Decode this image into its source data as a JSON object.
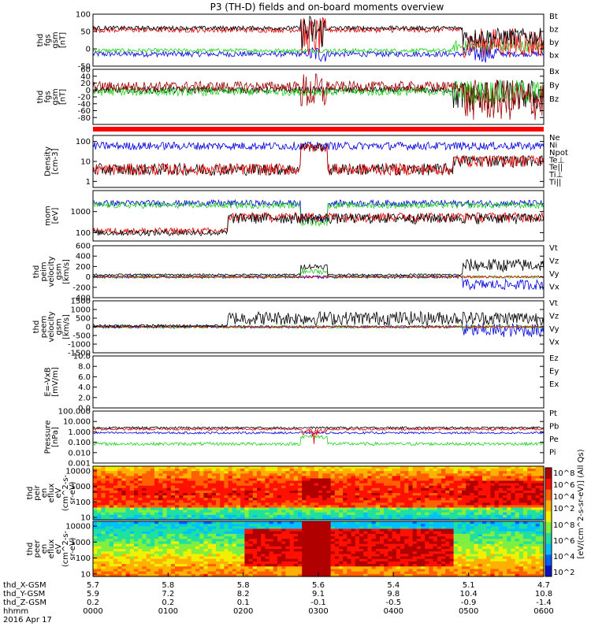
{
  "title": "P3 (TH-D) fields and on-board moments overview",
  "colors": {
    "black": "#000000",
    "red": "#e00000",
    "green": "#20d020",
    "blue": "#0000dd",
    "darkred": "#a00000"
  },
  "chart_data": [
    {
      "type": "line",
      "id": "p1",
      "ylabel": [
        "thd",
        "fgs",
        "gsm",
        "[nT]"
      ],
      "ylim": [
        -50,
        100
      ],
      "ticks": [
        "100",
        "50",
        "0",
        "-50"
      ],
      "tickvals": [
        100,
        50,
        0,
        -50
      ],
      "legend": [
        {
          "text": "Bt",
          "color": "black"
        },
        {
          "text": "bz",
          "color": "red"
        },
        {
          "text": "by",
          "color": "green"
        },
        {
          "text": "bx",
          "color": "blue"
        }
      ],
      "series": [
        {
          "name": "bx",
          "color": "blue",
          "base": -15,
          "noise": 8,
          "bursts": [
            [
              0.48,
              0.52,
              -40,
              10
            ],
            [
              0.82,
              0.9,
              -40,
              15
            ]
          ]
        },
        {
          "name": "by",
          "color": "green",
          "base": -5,
          "noise": 6,
          "bursts": [
            [
              0.8,
              1.0,
              -10,
              25
            ]
          ]
        },
        {
          "name": "bz",
          "color": "red",
          "base": 55,
          "noise": 8,
          "bursts": [
            [
              0.46,
              0.52,
              -20,
              90
            ],
            [
              0.82,
              1.0,
              -25,
              60
            ]
          ]
        },
        {
          "name": "Bt",
          "color": "black",
          "base": 60,
          "noise": 6,
          "bursts": [
            [
              0.46,
              0.52,
              0,
              100
            ],
            [
              0.82,
              1.0,
              10,
              60
            ]
          ]
        }
      ]
    },
    {
      "type": "line",
      "id": "p2",
      "ylabel": [
        "thd",
        "fgs",
        "gsm",
        "[nT]"
      ],
      "ylim": [
        -100,
        60
      ],
      "ticks": [
        "60",
        "40",
        "20",
        "0",
        "-20",
        "-40",
        "-60",
        "-80"
      ],
      "tickvals": [
        60,
        40,
        20,
        0,
        -20,
        -40,
        -60,
        -80
      ],
      "legend": [
        {
          "text": "Bx",
          "color": "black"
        },
        {
          "text": "By",
          "color": "green"
        },
        {
          "text": "Bz",
          "color": "darkred"
        }
      ],
      "series": [
        {
          "name": "Bx",
          "color": "black",
          "base": 0,
          "noise": 10,
          "bursts": [
            [
              0.8,
              1.0,
              -60,
              30
            ]
          ]
        },
        {
          "name": "By",
          "color": "green",
          "base": -5,
          "noise": 12,
          "bursts": [
            [
              0.8,
              1.0,
              -40,
              30
            ]
          ]
        },
        {
          "name": "Bz",
          "color": "darkred",
          "base": 10,
          "noise": 15,
          "bursts": [
            [
              0.46,
              0.52,
              -60,
              50
            ],
            [
              0.82,
              1.0,
              -90,
              30
            ]
          ]
        }
      ]
    },
    {
      "type": "line",
      "id": "p3",
      "ylabel": [
        "Density",
        "[cm-3]"
      ],
      "ylim": [
        0.5,
        200
      ],
      "log": true,
      "ticks": [
        "100",
        "10",
        "1"
      ],
      "tickvals": [
        100,
        10,
        1
      ],
      "legend": [
        {
          "text": "Ne",
          "color": "red"
        },
        {
          "text": "Ni",
          "color": "black"
        },
        {
          "text": "Npot",
          "color": "blue"
        },
        {
          "text": "Te⊥",
          "color": "red"
        },
        {
          "text": "Te||",
          "color": "black"
        },
        {
          "text": "Ti⊥",
          "color": "darkred"
        },
        {
          "text": "Ti||",
          "color": "green"
        }
      ],
      "series": [
        {
          "name": "Npot",
          "color": "blue",
          "base": 60,
          "noise": 0.4,
          "bursts": []
        },
        {
          "name": "Ni",
          "color": "black",
          "base": 4,
          "noise": 0.6,
          "bursts": [
            [
              0.46,
              0.52,
              30,
              80
            ],
            [
              0.8,
              1.0,
              5,
              20
            ]
          ]
        },
        {
          "name": "Ne",
          "color": "red",
          "base": 4,
          "noise": 0.6,
          "bursts": [
            [
              0.46,
              0.52,
              30,
              80
            ],
            [
              0.8,
              1.0,
              5,
              20
            ]
          ]
        }
      ]
    },
    {
      "type": "line",
      "id": "p4",
      "ylabel": [
        "mom",
        "[eV]"
      ],
      "ylim": [
        40,
        10000
      ],
      "log": true,
      "ticks": [
        "1000",
        "100"
      ],
      "tickvals": [
        1000,
        100
      ],
      "legend": [],
      "series": [
        {
          "name": "Ti⊥",
          "color": "blue",
          "base": 2500,
          "noise": 0.3,
          "bursts": [
            [
              0.46,
              0.52,
              300,
              600
            ]
          ]
        },
        {
          "name": "Ti||",
          "color": "green",
          "base": 2000,
          "noise": 0.3,
          "bursts": [
            [
              0.46,
              0.52,
              200,
              500
            ]
          ]
        },
        {
          "name": "Te⊥",
          "color": "red",
          "base": 120,
          "noise": 0.3,
          "bursts": [
            [
              0.3,
              1.0,
              300,
              900
            ]
          ]
        },
        {
          "name": "Te||",
          "color": "black",
          "base": 100,
          "noise": 0.3,
          "bursts": [
            [
              0.3,
              1.0,
              250,
              800
            ]
          ]
        }
      ]
    },
    {
      "type": "line",
      "id": "p5",
      "ylabel": [
        "thd",
        "peim",
        "velocity",
        "gsm",
        "[km/s]"
      ],
      "ylim": [
        -400,
        600
      ],
      "ticks": [
        "600",
        "400",
        "200",
        "0",
        "-200",
        "-400"
      ],
      "tickvals": [
        600,
        400,
        200,
        0,
        -200,
        -400
      ],
      "legend": [
        {
          "text": "Vt",
          "color": "black"
        },
        {
          "text": "Vz",
          "color": "red"
        },
        {
          "text": "Vy",
          "color": "green"
        },
        {
          "text": "Vx",
          "color": "blue"
        }
      ],
      "series": [
        {
          "name": "Vx",
          "color": "blue",
          "base": 0,
          "noise": 30,
          "bursts": [
            [
              0.82,
              1.0,
              -250,
              -50
            ]
          ]
        },
        {
          "name": "Vy",
          "color": "green",
          "base": 0,
          "noise": 25,
          "bursts": [
            [
              0.46,
              0.52,
              50,
              150
            ]
          ]
        },
        {
          "name": "Vz",
          "color": "red",
          "base": 0,
          "noise": 20,
          "bursts": []
        },
        {
          "name": "Vt",
          "color": "black",
          "base": 40,
          "noise": 20,
          "bursts": [
            [
              0.46,
              0.52,
              150,
              250
            ],
            [
              0.82,
              1.0,
              100,
              350
            ]
          ]
        }
      ]
    },
    {
      "type": "line",
      "id": "p6",
      "ylabel": [
        "thd",
        "peem",
        "velocity",
        "gsm",
        "[km/s]"
      ],
      "ylim": [
        -1500,
        1500
      ],
      "ticks": [
        "1500",
        "1000",
        "500",
        "0",
        "-500",
        "-1000",
        "-1500"
      ],
      "tickvals": [
        1500,
        1000,
        500,
        0,
        -500,
        -1000,
        -1500
      ],
      "legend": [
        {
          "text": "Vt",
          "color": "black"
        },
        {
          "text": "Vz",
          "color": "red"
        },
        {
          "text": "Vy",
          "color": "green"
        },
        {
          "text": "Vx",
          "color": "blue"
        }
      ],
      "series": [
        {
          "name": "Vx",
          "color": "blue",
          "base": 0,
          "noise": 80,
          "bursts": [
            [
              0.82,
              1.0,
              -600,
              200
            ]
          ]
        },
        {
          "name": "Vy",
          "color": "green",
          "base": 0,
          "noise": 80,
          "bursts": []
        },
        {
          "name": "Vz",
          "color": "red",
          "base": 0,
          "noise": 60,
          "bursts": []
        },
        {
          "name": "Vt",
          "color": "black",
          "base": 60,
          "noise": 80,
          "bursts": [
            [
              0.3,
              1.0,
              100,
              900
            ]
          ]
        }
      ]
    },
    {
      "type": "line",
      "id": "p7",
      "ylabel": [
        "E=-VxB",
        "[mV/m]"
      ],
      "ylim": [
        0,
        10
      ],
      "ticks": [
        "10.0",
        "8.0",
        "6.0",
        "4.0",
        "2.0",
        "0.0"
      ],
      "tickvals": [
        10,
        8,
        6,
        4,
        2,
        0
      ],
      "legend": [
        {
          "text": "Ez",
          "color": "red"
        },
        {
          "text": "Ey",
          "color": "green"
        },
        {
          "text": "Ex",
          "color": "blue"
        }
      ],
      "series": []
    },
    {
      "type": "line",
      "id": "p8",
      "ylabel": [
        "Pressure",
        "[nPa]"
      ],
      "ylim": [
        0.001,
        100
      ],
      "log": true,
      "ticks": [
        "100.000",
        "10.000",
        "1.000",
        "0.100",
        "0.010",
        "0.001"
      ],
      "tickvals": [
        100,
        10,
        1,
        0.1,
        0.01,
        0.001
      ],
      "legend": [
        {
          "text": "Pt",
          "color": "black"
        },
        {
          "text": "Pb",
          "color": "red"
        },
        {
          "text": "Pe",
          "color": "green"
        },
        {
          "text": "Pi",
          "color": "blue"
        }
      ],
      "series": [
        {
          "name": "Pe",
          "color": "green",
          "base": 0.07,
          "noise": 0.3,
          "bursts": [
            [
              0.46,
              0.52,
              0.2,
              0.5
            ]
          ]
        },
        {
          "name": "Pi",
          "color": "blue",
          "base": 0.8,
          "noise": 0.2,
          "bursts": []
        },
        {
          "name": "Pb",
          "color": "red",
          "base": 1.8,
          "noise": 0.2,
          "bursts": [
            [
              0.46,
              0.52,
              0.05,
              2
            ]
          ]
        },
        {
          "name": "Pt",
          "color": "black",
          "base": 2.5,
          "noise": 0.2,
          "bursts": []
        }
      ]
    }
  ],
  "spectrograms": [
    {
      "id": "s1",
      "type": "heatmap",
      "ylabel": [
        "thd",
        "peir",
        "en",
        "eflux",
        "eV",
        "(cm^2-s-",
        "sr-eV)"
      ],
      "ticks": [
        "10000",
        "1000",
        "100",
        "10"
      ],
      "tickvals": [
        10000,
        1000,
        100,
        10
      ],
      "ylim": [
        7,
        20000
      ]
    },
    {
      "id": "s2",
      "type": "heatmap",
      "ylabel": [
        "thd",
        "peer",
        "en",
        "eflux",
        "eV",
        "(cm^2-s-",
        "sr-eV)"
      ],
      "ticks": [
        "10000",
        "1000",
        "100",
        "10"
      ],
      "tickvals": [
        10000,
        1000,
        100,
        10
      ],
      "ylim": [
        7,
        20000
      ]
    }
  ],
  "colorbar": {
    "label": "[eV/(cm^2-s-sr-eV)] (All Qs)",
    "ticks": [
      "10^8",
      "10^6",
      "10^4",
      "10^2"
    ],
    "ticks2": [
      "10^8",
      "10^6",
      "10^4",
      "10^2"
    ]
  },
  "xaxis": {
    "rows": [
      {
        "label": "thd_X-GSM",
        "values": [
          "5.7",
          "5.8",
          "5.8",
          "5.6",
          "5.4",
          "5.1",
          "4.7"
        ]
      },
      {
        "label": "thd_Y-GSM",
        "values": [
          "5.9",
          "7.2",
          "8.2",
          "9.1",
          "9.8",
          "10.4",
          "10.8"
        ]
      },
      {
        "label": "thd_Z-GSM",
        "values": [
          "0.2",
          "0.2",
          "0.1",
          "-0.1",
          "-0.5",
          "-0.9",
          "-1.4"
        ]
      },
      {
        "label": "hhmm",
        "values": [
          "0000",
          "0100",
          "0200",
          "0300",
          "0400",
          "0500",
          "0600"
        ]
      }
    ],
    "date": "2016 Apr 17"
  }
}
